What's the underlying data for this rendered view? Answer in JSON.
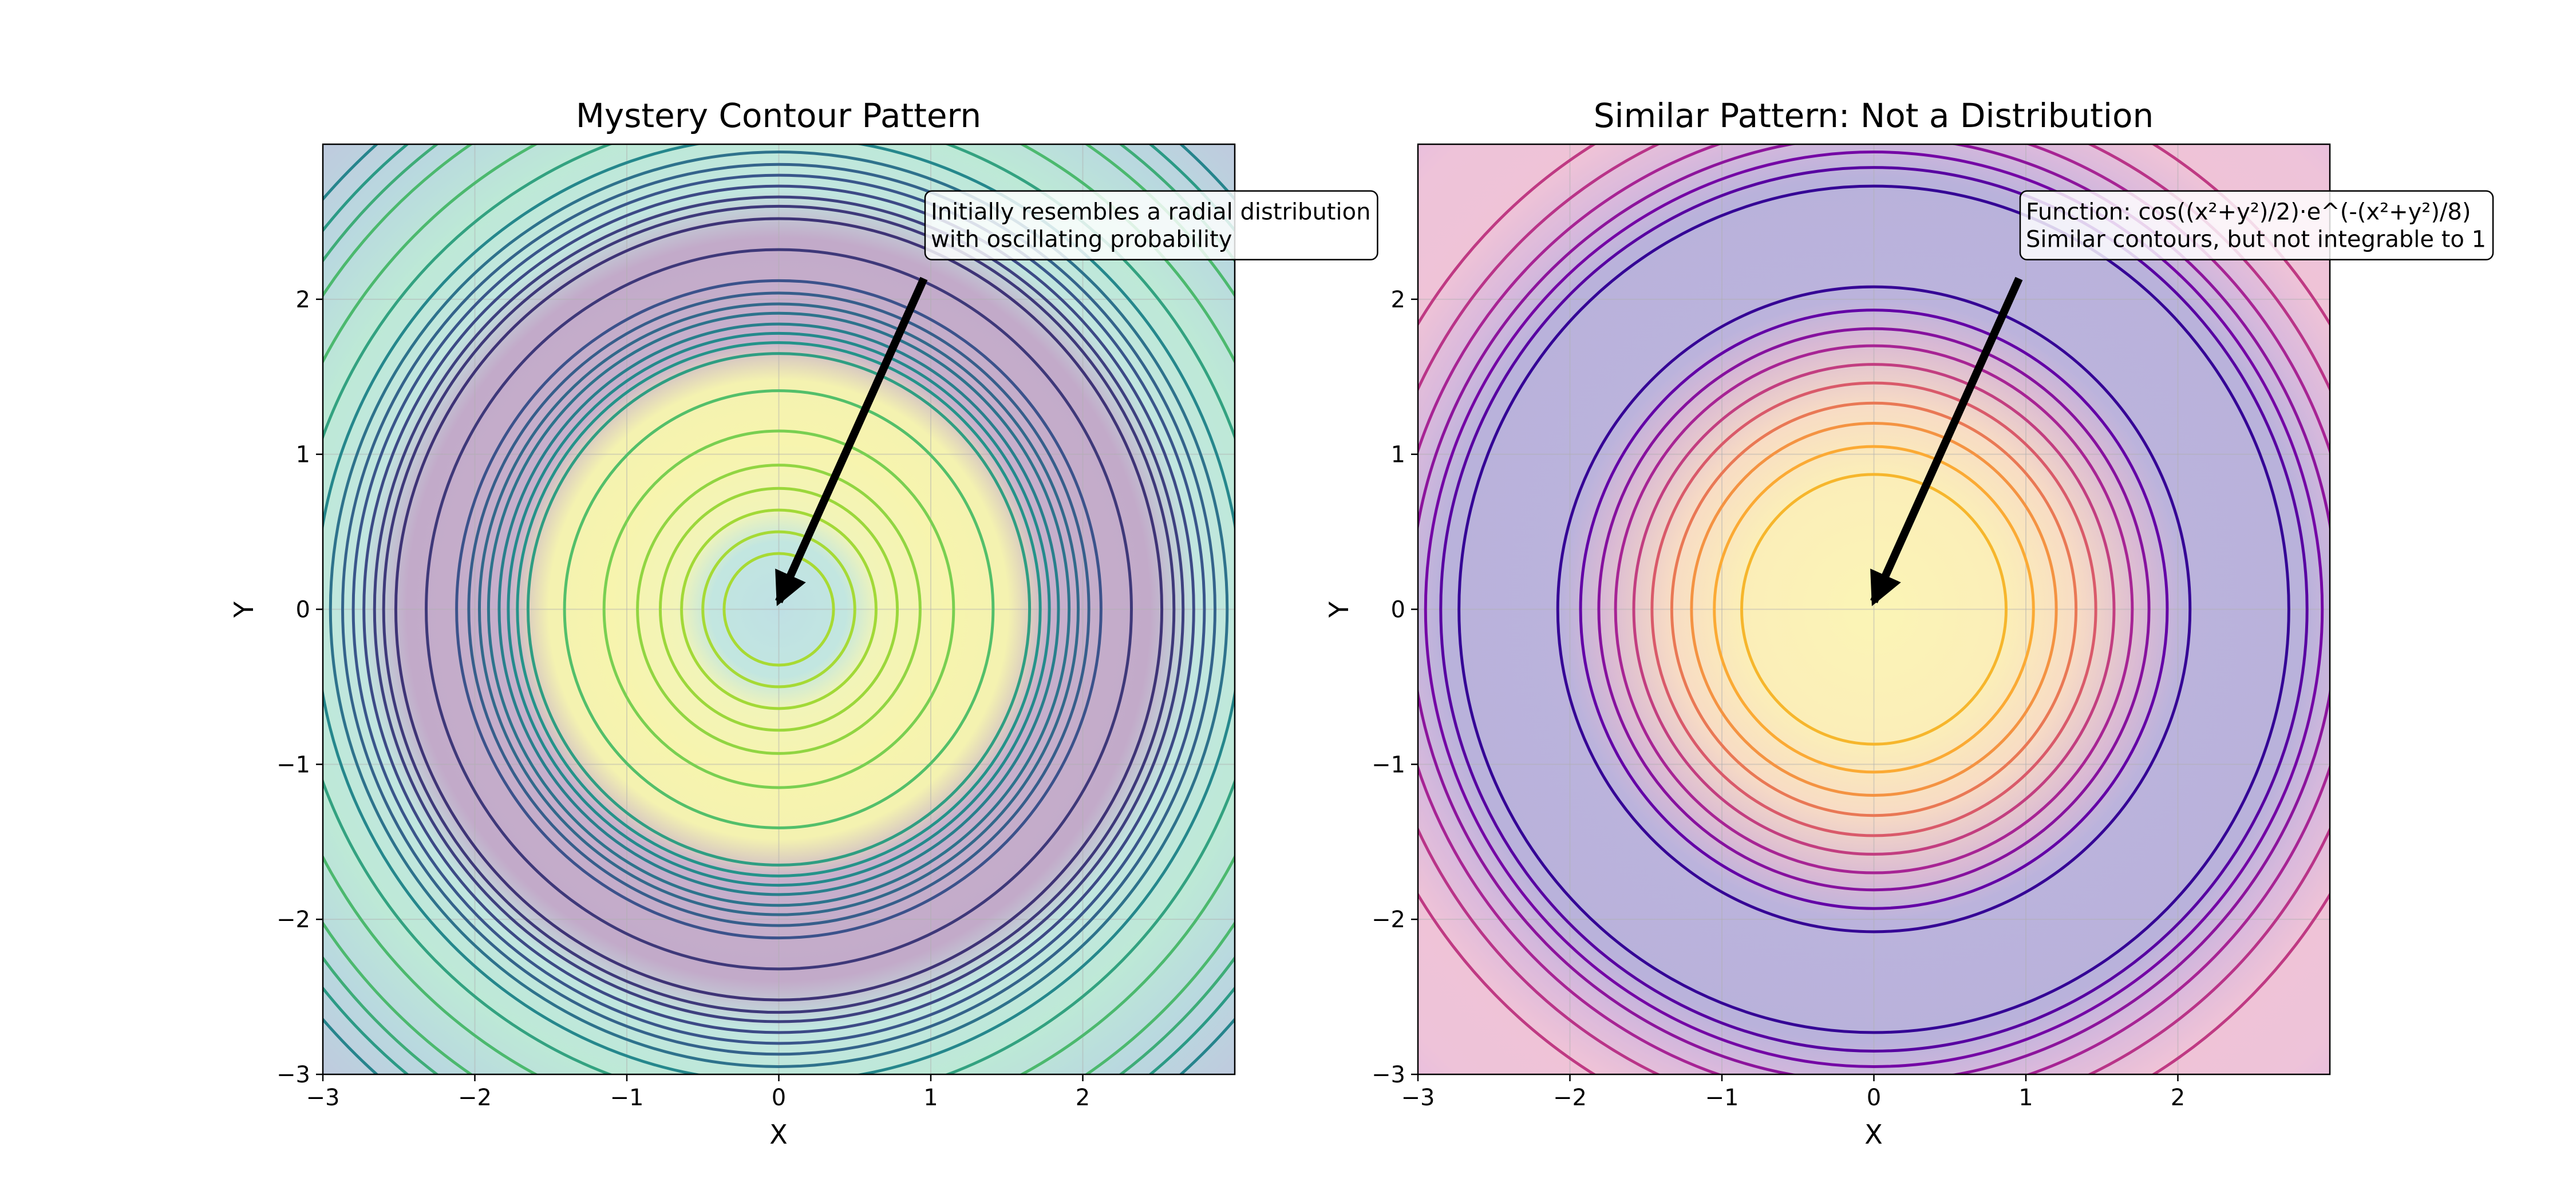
{
  "chart_data": [
    {
      "type": "contour",
      "title": "Mystery Contour Pattern",
      "xlabel": "X",
      "ylabel": "Y",
      "xlim": [
        -3,
        3
      ],
      "ylim": [
        -3,
        3
      ],
      "xticks": [
        "−3",
        "−2",
        "−1",
        "0",
        "1",
        "2"
      ],
      "yticks": [
        "−3",
        "−2",
        "−1",
        "0",
        "1",
        "2"
      ],
      "colormap": "viridis",
      "grid": true,
      "function_form": "radial oscillating",
      "contour_line_radii": [
        0.36,
        0.5,
        0.64,
        0.78,
        0.93,
        1.15,
        1.41,
        1.65,
        1.72,
        1.78,
        1.84,
        1.91,
        1.97,
        2.04,
        2.12,
        2.32,
        2.52,
        2.6,
        2.66,
        2.73,
        2.8,
        2.87,
        2.95,
        3.05,
        3.2,
        3.4,
        3.62,
        3.75,
        3.87,
        4.0
      ],
      "annotation": {
        "lines": [
          "Initially resembles a radial distribution",
          "with oscillating probability"
        ],
        "text_at": [
          1.0,
          2.2
        ],
        "arrow_to": [
          0.0,
          0.05
        ]
      }
    },
    {
      "type": "contour",
      "title": "Similar Pattern: Not a Distribution",
      "xlabel": "X",
      "ylabel": "Y",
      "xlim": [
        -3,
        3
      ],
      "ylim": [
        -3,
        3
      ],
      "xticks": [
        "−3",
        "−2",
        "−1",
        "0",
        "1",
        "2"
      ],
      "yticks": [
        "−3",
        "−2",
        "−1",
        "0",
        "1",
        "2"
      ],
      "colormap": "plasma",
      "grid": true,
      "function_form": "cos((x²+y²)/2)·exp(-(x²+y²)/8)",
      "contour_line_radii": [
        0.87,
        1.05,
        1.2,
        1.33,
        1.46,
        1.58,
        1.7,
        1.81,
        1.93,
        2.08,
        2.73,
        2.85,
        2.95,
        3.05,
        3.17,
        3.32,
        3.52
      ],
      "annotation": {
        "lines": [
          "Function: cos((x²+y²)/2)·e^(-(x²+y²)/8)",
          "Similar contours, but not integrable to 1"
        ],
        "text_at": [
          1.0,
          2.2
        ],
        "arrow_to": [
          0.0,
          0.05
        ]
      }
    }
  ]
}
